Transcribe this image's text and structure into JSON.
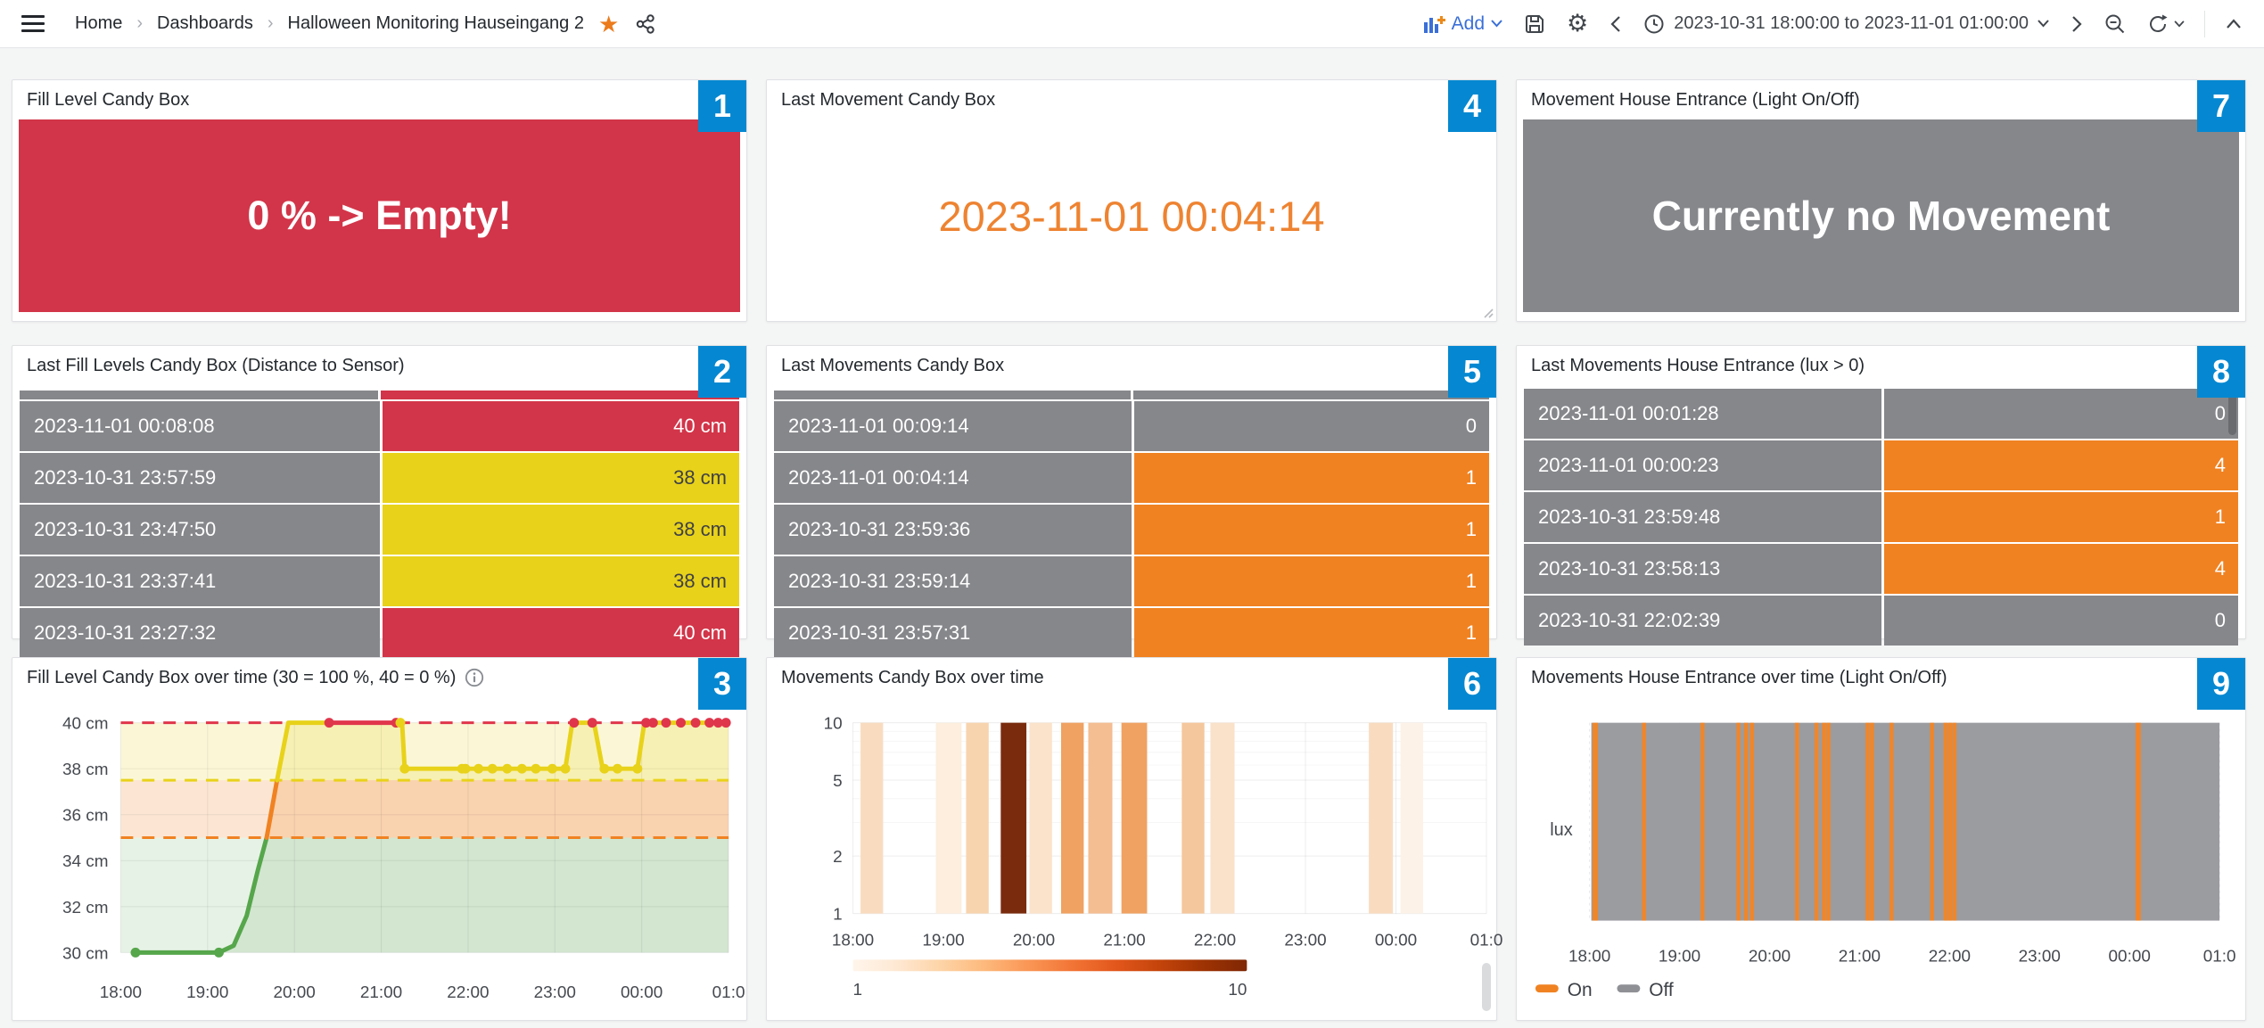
{
  "theme": {
    "badge_blue": "#0588d1",
    "red": "#d23549",
    "yellow": "#e8d21a",
    "orange": "#f08222",
    "gray": "#86878b",
    "green": "#56a64b",
    "link_blue": "#3a6fd8"
  },
  "topbar": {
    "menu_icon": "hamburger-icon",
    "breadcrumb": {
      "items": [
        "Home",
        "Dashboards",
        "Halloween Monitoring Hauseingang 2"
      ],
      "separator": "›"
    },
    "star_icon": "★",
    "add": {
      "label": "Add"
    },
    "gear_glyph": "⚙",
    "time_range": {
      "label": "2023-10-31 18:00:00 to 2023-11-01 01:00:00"
    }
  },
  "panels": {
    "p1": {
      "badge": "1",
      "title": "Fill Level Candy Box",
      "value": "0 % -> Empty!"
    },
    "p2": {
      "badge": "2",
      "title": "Last Fill Levels Candy Box (Distance to Sensor)",
      "table": {
        "sliver": [
          "gray",
          "red"
        ],
        "thumb": false,
        "rows": [
          {
            "time": "2023-11-01 00:08:08",
            "value": "40 cm",
            "color": "red"
          },
          {
            "time": "2023-10-31 23:57:59",
            "value": "38 cm",
            "color": "yellow"
          },
          {
            "time": "2023-10-31 23:47:50",
            "value": "38 cm",
            "color": "yellow"
          },
          {
            "time": "2023-10-31 23:37:41",
            "value": "38 cm",
            "color": "yellow"
          },
          {
            "time": "2023-10-31 23:27:32",
            "value": "40 cm",
            "color": "red"
          }
        ]
      }
    },
    "p3": {
      "badge": "3",
      "title": "Fill Level Candy Box over time (30 = 100 %, 40 = 0 %)",
      "chart_data": {
        "type": "line",
        "title": "Fill Level Candy Box over time (30 = 100 %, 40 = 0 %)",
        "x_ticks": [
          "18:00",
          "19:00",
          "20:00",
          "21:00",
          "22:00",
          "23:00",
          "00:00",
          "01:0"
        ],
        "y_ticks": [
          {
            "label": "40 cm",
            "value": 40
          },
          {
            "label": "38 cm",
            "value": 38
          },
          {
            "label": "36 cm",
            "value": 36
          },
          {
            "label": "34 cm",
            "value": 34
          },
          {
            "label": "32 cm",
            "value": 32
          },
          {
            "label": "30 cm",
            "value": 30
          }
        ],
        "ylim": [
          30,
          40
        ],
        "x_hours": [
          0,
          7
        ],
        "thresholds": [
          {
            "y": 40,
            "color": "#e0364c"
          },
          {
            "y": 37.5,
            "color": "#e8d21a"
          },
          {
            "y": 35,
            "color": "#f08222"
          }
        ],
        "zones": [
          {
            "from": 37.5,
            "to": 40,
            "color": "rgba(232,210,26,0.18)"
          },
          {
            "from": 35,
            "to": 37.5,
            "color": "rgba(240,130,34,0.20)"
          },
          {
            "from": 30,
            "to": 35,
            "color": "rgba(86,166,75,0.14)"
          }
        ],
        "segments": [
          {
            "color": "#56a64b",
            "points": [
              [
                0.17,
                30
              ],
              [
                1.13,
                30
              ],
              [
                1.3,
                30.3
              ],
              [
                1.45,
                31.6
              ],
              [
                1.58,
                33.6
              ],
              [
                1.68,
                35
              ]
            ]
          },
          {
            "color": "#f08222",
            "points": [
              [
                1.68,
                35
              ],
              [
                1.8,
                37.5
              ]
            ]
          },
          {
            "color": "#e8d21a",
            "points": [
              [
                1.8,
                37.5
              ],
              [
                1.93,
                40
              ],
              [
                2.4,
                40
              ]
            ]
          },
          {
            "color": "#e0364c",
            "points": [
              [
                2.4,
                40
              ],
              [
                3.17,
                40
              ]
            ]
          },
          {
            "color": "#e8d21a",
            "points": [
              [
                3.17,
                40
              ],
              [
                3.24,
                40
              ],
              [
                3.27,
                38
              ],
              [
                5.12,
                38
              ],
              [
                5.2,
                40
              ],
              [
                5.45,
                40
              ],
              [
                5.55,
                38
              ],
              [
                5.95,
                38
              ],
              [
                6.03,
                40
              ],
              [
                7,
                40
              ]
            ]
          }
        ],
        "points": [
          {
            "x": 0.17,
            "y": 30,
            "color": "#56a64b"
          },
          {
            "x": 1.13,
            "y": 30,
            "color": "#56a64b"
          },
          {
            "x": 2.4,
            "y": 40,
            "color": "#e0364c"
          },
          {
            "x": 3.17,
            "y": 40,
            "color": "#e0364c"
          },
          {
            "x": 3.22,
            "y": 40,
            "color": "#e8d21a"
          },
          {
            "x": 3.27,
            "y": 38,
            "color": "#e8d21a"
          },
          {
            "x": 3.93,
            "y": 38,
            "color": "#e8d21a"
          },
          {
            "x": 3.97,
            "y": 38,
            "color": "#e8d21a"
          },
          {
            "x": 4.12,
            "y": 38,
            "color": "#e8d21a"
          },
          {
            "x": 4.28,
            "y": 38,
            "color": "#e8d21a"
          },
          {
            "x": 4.45,
            "y": 38,
            "color": "#e8d21a"
          },
          {
            "x": 4.62,
            "y": 38,
            "color": "#e8d21a"
          },
          {
            "x": 4.78,
            "y": 38,
            "color": "#e8d21a"
          },
          {
            "x": 4.97,
            "y": 38,
            "color": "#e8d21a"
          },
          {
            "x": 5.12,
            "y": 38,
            "color": "#e8d21a"
          },
          {
            "x": 5.22,
            "y": 40,
            "color": "#e0364c"
          },
          {
            "x": 5.43,
            "y": 40,
            "color": "#e0364c"
          },
          {
            "x": 5.57,
            "y": 38,
            "color": "#e8d21a"
          },
          {
            "x": 5.72,
            "y": 38,
            "color": "#e8d21a"
          },
          {
            "x": 5.95,
            "y": 38,
            "color": "#e8d21a"
          },
          {
            "x": 6.05,
            "y": 40,
            "color": "#e0364c"
          },
          {
            "x": 6.13,
            "y": 40,
            "color": "#e0364c"
          },
          {
            "x": 6.28,
            "y": 40,
            "color": "#e0364c"
          },
          {
            "x": 6.45,
            "y": 40,
            "color": "#e0364c"
          },
          {
            "x": 6.62,
            "y": 40,
            "color": "#e0364c"
          },
          {
            "x": 6.78,
            "y": 40,
            "color": "#e0364c"
          },
          {
            "x": 6.88,
            "y": 40,
            "color": "#e0364c"
          },
          {
            "x": 6.97,
            "y": 40,
            "color": "#e0364c"
          }
        ]
      }
    },
    "p4": {
      "badge": "4",
      "title": "Last Movement Candy Box",
      "value": "2023-11-01 00:04:14",
      "value_color": "#ee8331"
    },
    "p5": {
      "badge": "5",
      "title": "Last Movements Candy Box",
      "table": {
        "sliver": [
          "gray",
          "gray"
        ],
        "thumb": false,
        "rows": [
          {
            "time": "2023-11-01 00:09:14",
            "value": "0",
            "color": "gray"
          },
          {
            "time": "2023-11-01 00:04:14",
            "value": "1",
            "color": "orange"
          },
          {
            "time": "2023-10-31 23:59:36",
            "value": "1",
            "color": "orange"
          },
          {
            "time": "2023-10-31 23:59:14",
            "value": "1",
            "color": "orange"
          },
          {
            "time": "2023-10-31 23:57:31",
            "value": "1",
            "color": "orange"
          }
        ]
      }
    },
    "p6": {
      "badge": "6",
      "title": "Movements Candy Box over time",
      "chart_data": {
        "type": "heatmap",
        "title": "Movements Candy Box over time",
        "x_ticks": [
          "18:00",
          "19:00",
          "20:00",
          "21:00",
          "22:00",
          "23:00",
          "00:00",
          "01:0"
        ],
        "y_ticks": [
          {
            "label": "10",
            "value": 10
          },
          {
            "label": "5",
            "value": 5
          },
          {
            "label": "2",
            "value": 2
          },
          {
            "label": "1",
            "value": 1
          }
        ],
        "y_scale": "log",
        "ylim": [
          1,
          10
        ],
        "columns": [
          {
            "from_min": 5,
            "to_min": 20,
            "color": "#f9dcc0"
          },
          {
            "from_min": 55,
            "to_min": 72,
            "color": "#fdeedd"
          },
          {
            "from_min": 75,
            "to_min": 90,
            "color": "#f7d4ae"
          },
          {
            "from_min": 98,
            "to_min": 115,
            "color": "#7a2b0d"
          },
          {
            "from_min": 117,
            "to_min": 132,
            "color": "#fbe3cb"
          },
          {
            "from_min": 138,
            "to_min": 153,
            "color": "#efa262"
          },
          {
            "from_min": 156,
            "to_min": 172,
            "color": "#f4bd92"
          },
          {
            "from_min": 178,
            "to_min": 195,
            "color": "#efa262"
          },
          {
            "from_min": 218,
            "to_min": 233,
            "color": "#f5c79c"
          },
          {
            "from_min": 237,
            "to_min": 253,
            "color": "#fae2ca"
          },
          {
            "from_min": 342,
            "to_min": 358,
            "color": "#f9dcc0"
          },
          {
            "from_min": 363,
            "to_min": 378,
            "color": "#fdf2e7"
          }
        ],
        "legend": {
          "min_label": "1",
          "max_label": "10",
          "gradient": [
            "#fff5eb",
            "#fee8d3",
            "#fdd4a7",
            "#fdb97c",
            "#fa9656",
            "#f27536",
            "#e2571c",
            "#c4440b",
            "#9e3303",
            "#7f2704"
          ]
        }
      }
    },
    "p7": {
      "badge": "7",
      "title": "Movement House Entrance (Light On/Off)",
      "value": "Currently no Movement"
    },
    "p8": {
      "badge": "8",
      "title": "Last Movements House Entrance (lux > 0)",
      "table": {
        "thumb": true,
        "rows": [
          {
            "time": "2023-11-01 00:01:28",
            "value": "0",
            "color": "gray"
          },
          {
            "time": "2023-11-01 00:00:23",
            "value": "4",
            "color": "orange"
          },
          {
            "time": "2023-10-31 23:59:48",
            "value": "1",
            "color": "orange"
          },
          {
            "time": "2023-10-31 23:58:13",
            "value": "4",
            "color": "orange"
          },
          {
            "time": "2023-10-31 22:02:39",
            "value": "0",
            "color": "gray"
          }
        ]
      }
    },
    "p9": {
      "badge": "9",
      "title": "Movements House Entrance over time (Light On/Off)",
      "chart_data": {
        "type": "state-timeline",
        "title": "Movements House Entrance over time (Light On/Off)",
        "ylabel": "lux",
        "x_ticks": [
          "18:00",
          "19:00",
          "20:00",
          "21:00",
          "22:00",
          "23:00",
          "00:00",
          "01:0"
        ],
        "legend": [
          {
            "label": "On",
            "color": "#f08222"
          },
          {
            "label": "Off",
            "color": "#8e9095"
          }
        ],
        "off_color": "#9b9ca0",
        "on_color": "#f0862a",
        "on_events_min": [
          2,
          35,
          74,
          98,
          103,
          107,
          137,
          150,
          155,
          158,
          184,
          187,
          200,
          227,
          236,
          239,
          242,
          364
        ]
      }
    }
  }
}
